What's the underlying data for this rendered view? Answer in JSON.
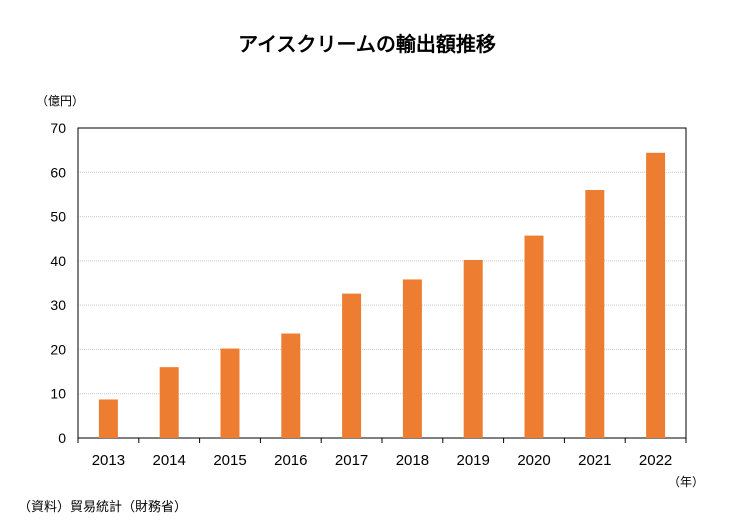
{
  "chart_data": {
    "type": "bar",
    "title": "アイスクリームの輸出額推移",
    "y_unit_label": "（億円）",
    "x_unit_label": "（年）",
    "source": "（資料）貿易統計（財務省）",
    "categories": [
      "2013",
      "2014",
      "2015",
      "2016",
      "2017",
      "2018",
      "2019",
      "2020",
      "2021",
      "2022"
    ],
    "values": [
      8.7,
      16.0,
      20.2,
      23.6,
      32.6,
      35.8,
      40.2,
      45.7,
      56.0,
      64.4
    ],
    "ylim": [
      0,
      70
    ],
    "yticks": [
      0,
      10,
      20,
      30,
      40,
      50,
      60,
      70
    ],
    "ytick_labels": [
      "0",
      "10",
      "20",
      "30",
      "40",
      "50",
      "60",
      "70"
    ],
    "grid": true,
    "bar_color": "#ED7D31"
  }
}
